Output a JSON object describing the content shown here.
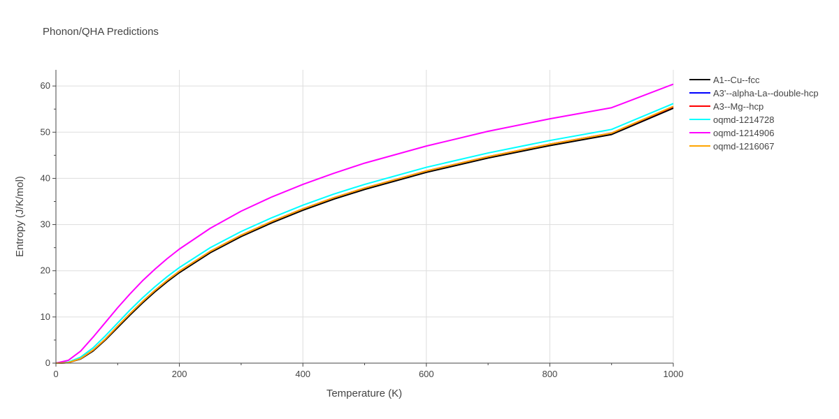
{
  "chart_data": {
    "type": "line",
    "title": "Phonon/QHA Predictions",
    "xlabel": "Temperature (K)",
    "ylabel": "Entropy (J/K/mol)",
    "xlim": [
      0,
      1000
    ],
    "ylim": [
      0,
      63.5
    ],
    "xticks": [
      0,
      200,
      400,
      600,
      800,
      1000
    ],
    "yticks": [
      0,
      10,
      20,
      30,
      40,
      50,
      60
    ],
    "grid": true,
    "legend_position": "right",
    "series": [
      {
        "name": "A1--Cu--fcc",
        "color": "#000000",
        "x": [
          0,
          20,
          40,
          60,
          80,
          100,
          120,
          140,
          160,
          180,
          200,
          250,
          300,
          350,
          400,
          450,
          500,
          600,
          700,
          800,
          900,
          1000
        ],
        "y": [
          0,
          0.1,
          0.9,
          2.6,
          5.0,
          7.7,
          10.4,
          13.0,
          15.4,
          17.6,
          19.6,
          23.9,
          27.4,
          30.4,
          33.1,
          35.5,
          37.6,
          41.3,
          44.4,
          47.1,
          49.5,
          55.2
        ]
      },
      {
        "name": "A3'--alpha-La--double-hcp",
        "color": "#0000ff",
        "x": [
          0,
          20,
          40,
          60,
          80,
          100,
          120,
          140,
          160,
          180,
          200,
          250,
          300,
          350,
          400,
          450,
          500,
          600,
          700,
          800,
          900,
          1000
        ],
        "y": [
          0,
          0.1,
          1.0,
          2.8,
          5.2,
          8.0,
          10.7,
          13.3,
          15.7,
          17.9,
          19.9,
          24.2,
          27.7,
          30.7,
          33.4,
          35.8,
          37.9,
          41.6,
          44.7,
          47.4,
          49.8,
          55.5
        ]
      },
      {
        "name": "A3--Mg--hcp",
        "color": "#ff0000",
        "x": [
          0,
          20,
          40,
          60,
          80,
          100,
          120,
          140,
          160,
          180,
          200,
          250,
          300,
          350,
          400,
          450,
          500,
          600,
          700,
          800,
          900,
          1000
        ],
        "y": [
          0,
          0.1,
          1.0,
          2.8,
          5.2,
          8.0,
          10.7,
          13.3,
          15.7,
          17.9,
          19.9,
          24.2,
          27.7,
          30.7,
          33.4,
          35.8,
          37.9,
          41.6,
          44.7,
          47.4,
          49.8,
          55.5
        ]
      },
      {
        "name": "oqmd-1214728",
        "color": "#00ffff",
        "x": [
          0,
          20,
          40,
          60,
          80,
          100,
          120,
          140,
          160,
          180,
          200,
          250,
          300,
          350,
          400,
          450,
          500,
          600,
          700,
          800,
          900,
          1000
        ],
        "y": [
          0,
          0.2,
          1.3,
          3.3,
          5.9,
          8.7,
          11.5,
          14.1,
          16.5,
          18.7,
          20.7,
          25.0,
          28.5,
          31.5,
          34.2,
          36.6,
          38.7,
          42.4,
          45.5,
          48.2,
          50.6,
          56.2
        ]
      },
      {
        "name": "oqmd-1214906",
        "color": "#ff00ff",
        "x": [
          0,
          20,
          40,
          60,
          80,
          100,
          120,
          140,
          160,
          180,
          200,
          250,
          300,
          350,
          400,
          450,
          500,
          600,
          700,
          800,
          900,
          1000
        ],
        "y": [
          0,
          0.6,
          2.6,
          5.6,
          8.8,
          12.0,
          15.0,
          17.8,
          20.3,
          22.6,
          24.7,
          29.2,
          32.9,
          36.0,
          38.7,
          41.1,
          43.3,
          47.0,
          50.2,
          52.9,
          55.3,
          60.4
        ]
      },
      {
        "name": "oqmd-1216067",
        "color": "#ffa500",
        "x": [
          0,
          20,
          40,
          60,
          80,
          100,
          120,
          140,
          160,
          180,
          200,
          250,
          300,
          350,
          400,
          450,
          500,
          600,
          700,
          800,
          900,
          1000
        ],
        "y": [
          0,
          0.1,
          1.0,
          2.8,
          5.2,
          8.0,
          10.7,
          13.3,
          15.7,
          17.9,
          19.9,
          24.2,
          27.7,
          30.7,
          33.4,
          35.8,
          37.9,
          41.6,
          44.7,
          47.4,
          49.8,
          55.6
        ]
      }
    ]
  }
}
